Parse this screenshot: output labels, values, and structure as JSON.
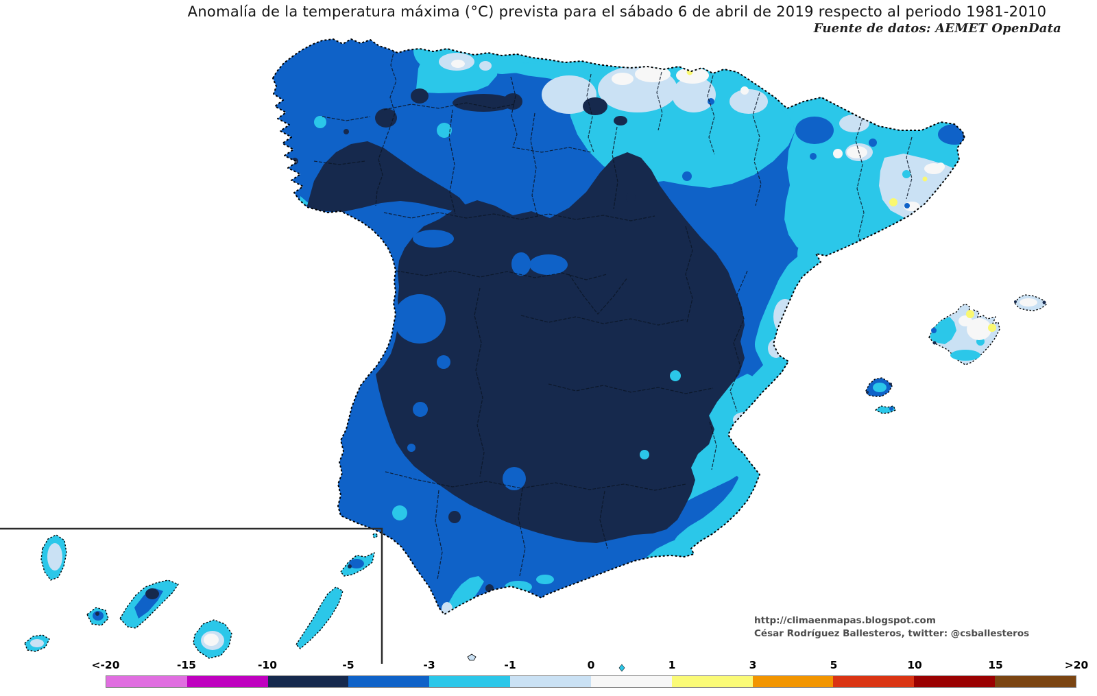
{
  "header": {
    "title": "Anomalía de la temperatura máxima (°C) prevista para el sábado 6 de abril de 2019 respecto al periodo 1981-2010",
    "source_note": "Fuente de datos: AEMET OpenData"
  },
  "credits": {
    "website": "http://climaenmapas.blogspot.com",
    "author_line": "César Rodríguez Ballesteros, twitter: @csballesteros"
  },
  "legend": {
    "unit": "°C",
    "tick_labels": [
      "<-20",
      "-15",
      "-10",
      "-5",
      "-3",
      "-1",
      "0",
      "1",
      "3",
      "5",
      "10",
      "15",
      ">20"
    ],
    "segment_colors": [
      "#E06EE0",
      "#BF00BF",
      "#16294D",
      "#0F62C8",
      "#2BC7E9",
      "#CAE1F4",
      "#F7F7F7",
      "#FAFA77",
      "#F29500",
      "#DA3413",
      "#9A0101",
      "#7B4512"
    ]
  },
  "palette": {
    "violet": "#E06EE0",
    "magenta": "#BF00BF",
    "navy": "#16294D",
    "blue": "#0F62C8",
    "cyan": "#2BC7E9",
    "light": "#CAE1F4",
    "white": "#F7F7F7",
    "yellow": "#FAF870",
    "orange": "#F29500",
    "red": "#DA3413",
    "darkred": "#9A0101",
    "brown": "#7B4512"
  },
  "map": {
    "anomaly_regions": [
      {
        "area": "Interior of the peninsula (both mesetas, Extremadura, inner Andalucía)",
        "anomaly_c": "-10 to -5"
      },
      {
        "area": "Galicia, western fringe and southern coastal band",
        "anomaly_c": "-5 to -3"
      },
      {
        "area": "Cantabrian strip, Ebro area, Mediterranean coast, Canary Islands",
        "anomaly_c": "-3 to -1"
      },
      {
        "area": "Basque coast, Pyrenees, inland Catalonia, Valencia patches, Mallorca and Menorca",
        "anomaly_c": "-1 to 0"
      },
      {
        "area": "Small spots on the Cantabrian coast and Catalonia",
        "anomaly_c": "0 to 1"
      },
      {
        "area": "Isolated dots on the Basque coast, coastal Catalonia and Mallorca",
        "anomaly_c": "1 to 3"
      }
    ],
    "islands": [
      "Islas Baleares",
      "Islas Canarias",
      "Ceuta",
      "Melilla"
    ]
  }
}
